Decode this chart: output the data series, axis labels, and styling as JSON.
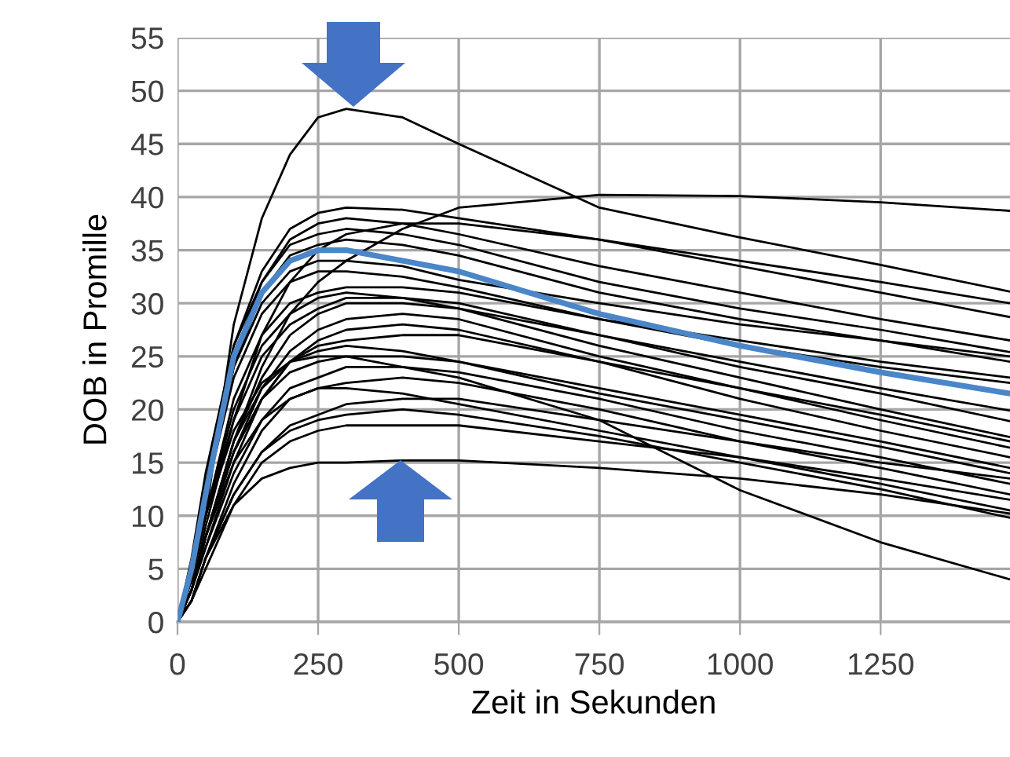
{
  "chart_data": {
    "type": "line",
    "xlabel": "Zeit in Sekunden",
    "ylabel": "DOB in Promille",
    "x": [
      0,
      25,
      50,
      100,
      150,
      200,
      250,
      300,
      400,
      500,
      750,
      1000,
      1250,
      1480
    ],
    "xlim": [
      0,
      1480
    ],
    "xticks": [
      0,
      250,
      500,
      750,
      1000,
      1250
    ],
    "ylim": [
      0,
      55
    ],
    "yticks": [
      0,
      5,
      10,
      15,
      20,
      25,
      30,
      35,
      40,
      45,
      50,
      55
    ],
    "grid": true,
    "marker": "none",
    "line_style": "solid",
    "series": [
      {
        "color": "#000000",
        "values": [
          0,
          4,
          10,
          28,
          38,
          44,
          47.5,
          48.3,
          47.5,
          45,
          39,
          36.2,
          33.6,
          31.1
        ]
      },
      {
        "color": "#000000",
        "values": [
          0,
          3,
          8,
          17,
          24,
          29,
          32,
          34,
          37,
          39,
          40.2,
          40.1,
          39.5,
          38.7
        ]
      },
      {
        "color": "#000000",
        "values": [
          0,
          5,
          13,
          26,
          33,
          37,
          38.5,
          39,
          38.8,
          38,
          36,
          33.5,
          31,
          28.7
        ]
      },
      {
        "color": "#000000",
        "values": [
          0,
          5,
          12,
          25,
          32,
          36,
          37.5,
          38,
          37.5,
          36.5,
          33.5,
          31,
          28.5,
          26.5
        ]
      },
      {
        "color": "#000000",
        "values": [
          0,
          6,
          14,
          26,
          32,
          35.5,
          36.5,
          37,
          36.5,
          35.5,
          32,
          29.5,
          27.5,
          25.4
        ]
      },
      {
        "color": "#000000",
        "values": [
          0,
          5,
          12,
          24,
          31,
          34.5,
          35.5,
          36,
          35.5,
          34.5,
          31,
          28.5,
          26.5,
          24.5
        ]
      },
      {
        "color": "#000000",
        "values": [
          0,
          4,
          10,
          20,
          26,
          29,
          30.5,
          31,
          30.5,
          29.5,
          27,
          24.5,
          22,
          19.9
        ]
      },
      {
        "color": "#000000",
        "values": [
          0,
          4,
          10,
          19,
          25,
          28,
          29.5,
          30.5,
          30.5,
          30,
          27,
          24,
          21.5,
          18.9
        ]
      },
      {
        "color": "#000000",
        "values": [
          0,
          3,
          8,
          17,
          23,
          27,
          29,
          30,
          30,
          29.5,
          26,
          23,
          20,
          17.4
        ]
      },
      {
        "color": "#000000",
        "values": [
          0,
          3,
          8,
          16,
          22,
          25.5,
          27.5,
          28.5,
          29,
          28.5,
          25,
          22,
          19,
          16.4
        ]
      },
      {
        "color": "#000000",
        "values": [
          0,
          3,
          7,
          15,
          21,
          24.5,
          26.5,
          27.5,
          28,
          27.5,
          24.5,
          21,
          18,
          15.5
        ]
      },
      {
        "color": "#000000",
        "values": [
          0,
          3,
          8,
          16,
          21,
          23.5,
          24.5,
          25,
          25,
          24.5,
          22,
          19.5,
          17,
          14.5
        ]
      },
      {
        "color": "#000000",
        "values": [
          0,
          3,
          7,
          14,
          19,
          22,
          23,
          24,
          24,
          23.5,
          21,
          18,
          15.5,
          13
        ]
      },
      {
        "color": "#000000",
        "values": [
          0,
          2,
          6,
          13,
          18,
          21,
          22,
          22.5,
          23,
          22.5,
          20,
          17,
          14.5,
          12
        ]
      },
      {
        "color": "#000000",
        "values": [
          0,
          3,
          8,
          15,
          19,
          21,
          22,
          22,
          21.5,
          20.5,
          18,
          15.5,
          13,
          10.5
        ]
      },
      {
        "color": "#000000",
        "values": [
          0,
          2,
          6,
          12,
          16,
          18,
          19,
          19.5,
          20,
          19.5,
          17.5,
          15,
          12.5,
          9.8
        ]
      },
      {
        "color": "#000000",
        "values": [
          0,
          3,
          8,
          17,
          22,
          24.5,
          25,
          25,
          24,
          23,
          19,
          12.4,
          7.5,
          4
        ]
      },
      {
        "color": "#000000",
        "values": [
          0,
          2,
          6,
          11,
          13.5,
          14.5,
          15,
          15,
          15.2,
          15.2,
          14.5,
          13.5,
          12,
          10.2
        ]
      },
      {
        "color": "#000000",
        "values": [
          0,
          5,
          12,
          23,
          29,
          32,
          33,
          33,
          32.5,
          31.5,
          28.5,
          26,
          24,
          22.5
        ]
      },
      {
        "color": "#000000",
        "values": [
          0,
          4,
          10,
          21,
          27,
          30,
          31,
          31.5,
          31.5,
          31,
          28.5,
          26.5,
          24.5,
          23
        ]
      },
      {
        "color": "#000000",
        "values": [
          0,
          3,
          8,
          16,
          21,
          24.5,
          26,
          26.5,
          27,
          27,
          24.5,
          22,
          19.5,
          17
        ]
      },
      {
        "color": "#000000",
        "values": [
          0,
          4,
          10,
          18,
          22.5,
          24.5,
          25.5,
          26,
          25.5,
          24.5,
          21.5,
          19,
          16.5,
          14
        ]
      },
      {
        "color": "#000000",
        "values": [
          0,
          2,
          6,
          12,
          16,
          18.5,
          19.5,
          20.5,
          21,
          21,
          19,
          17,
          15,
          13.5
        ]
      },
      {
        "color": "#000000",
        "values": [
          0,
          2,
          5,
          11,
          15,
          17,
          18,
          18.5,
          18.5,
          18.5,
          17,
          15.5,
          13.5,
          11.5
        ]
      },
      {
        "color": "#000000",
        "values": [
          0,
          5,
          12,
          24,
          30,
          33,
          34,
          34,
          33.5,
          32.2,
          30,
          28,
          26.5,
          25
        ]
      },
      {
        "color": "#000000",
        "values": [
          0,
          3,
          9,
          19,
          27,
          32,
          35,
          36.5,
          37.5,
          37.5,
          36,
          34,
          32,
          30
        ]
      },
      {
        "color": "#4a86c8",
        "values": [
          0,
          5,
          12,
          25,
          31,
          34,
          35,
          35,
          34,
          33,
          29,
          26,
          23.5,
          21.5
        ]
      }
    ]
  }
}
